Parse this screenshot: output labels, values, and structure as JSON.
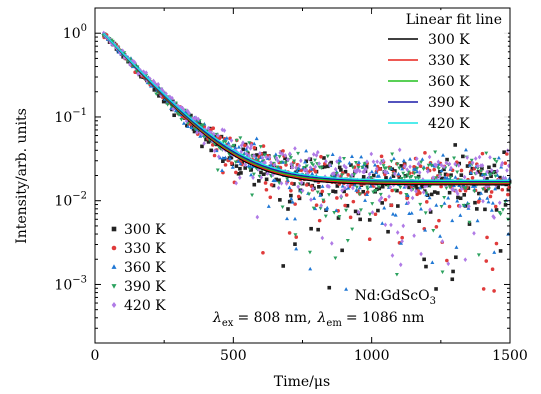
{
  "chart_data": {
    "type": "scatter",
    "title": "",
    "xlabel": "Time/μs",
    "ylabel": "Intensity/arb. units",
    "xlim": [
      0,
      1500
    ],
    "ylim": [
      0.0002,
      2
    ],
    "yscale": "log",
    "grid": false,
    "x_ticks": [
      0,
      500,
      1000,
      1500
    ],
    "x_tick_labels": [
      "0",
      "500",
      "1000",
      "1500"
    ],
    "y_ticks": [
      0.001,
      0.01,
      0.1,
      1
    ],
    "y_tick_labels": [
      {
        "base": "10",
        "exp": "−3"
      },
      {
        "base": "10",
        "exp": "−2"
      },
      {
        "base": "10",
        "exp": "−1"
      },
      {
        "base": "10",
        "exp": "0"
      }
    ],
    "fit_legend_title": "Linear fit line",
    "fit_legend_placement": "top-right",
    "scatter_legend_placement": "bottom-left",
    "fit_lines": [
      {
        "name": "300 K",
        "color": "#000000",
        "decay_us": 120,
        "offset": 0.0155
      },
      {
        "name": "330 K",
        "color": "#e8221b",
        "decay_us": 121,
        "offset": 0.016
      },
      {
        "name": "360 K",
        "color": "#22c11f",
        "decay_us": 122,
        "offset": 0.0165
      },
      {
        "name": "390 K",
        "color": "#1a1aa8",
        "decay_us": 123,
        "offset": 0.017
      },
      {
        "name": "420 K",
        "color": "#19e5e5",
        "decay_us": 125,
        "offset": 0.0175
      }
    ],
    "fit_x_start": 30,
    "fit_x_end": 1500,
    "series": [
      {
        "name": "300 K",
        "color": "#222222",
        "marker": "square",
        "decay_us": 120,
        "offset": 0.0155
      },
      {
        "name": "330 K",
        "color": "#e03b3b",
        "marker": "circle",
        "decay_us": 121,
        "offset": 0.016
      },
      {
        "name": "360 K",
        "color": "#1f77d4",
        "marker": "triangle-up",
        "decay_us": 122,
        "offset": 0.0165
      },
      {
        "name": "390 K",
        "color": "#2ca25f",
        "marker": "triangle-down",
        "decay_us": 123,
        "offset": 0.017
      },
      {
        "name": "420 K",
        "color": "#b07be6",
        "marker": "diamond",
        "decay_us": 125,
        "offset": 0.0175
      }
    ],
    "scatter_x_start": 30,
    "scatter_x_end": 1500,
    "scatter_points_per_series": 300,
    "annotation_sample": "Nd:GdScO",
    "annotation_sample_sub": "3",
    "annotation_lambda_ex": "= 808 nm,",
    "annotation_lambda_em": "= 1086 nm",
    "annotation_ex_sub": "ex",
    "annotation_em_sub": "em",
    "annotation_lambda": "λ"
  }
}
